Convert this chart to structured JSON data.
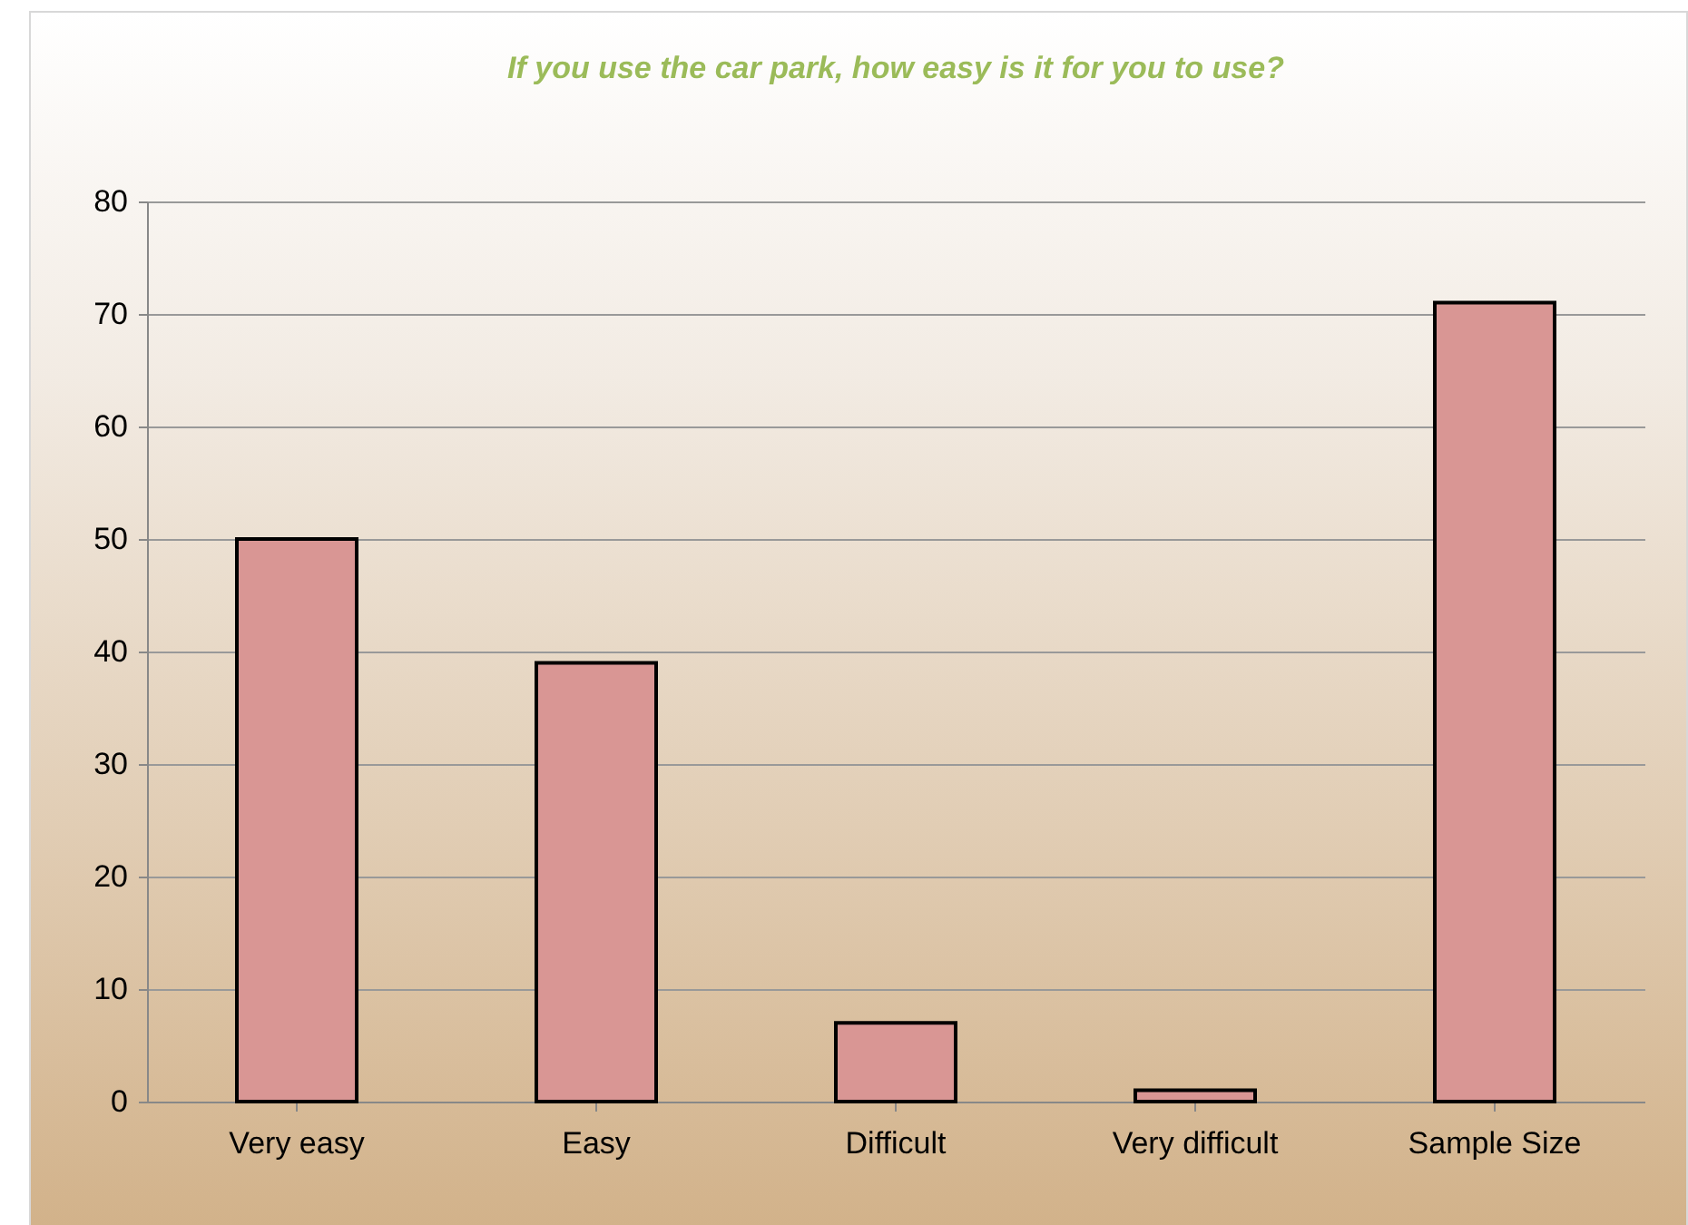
{
  "chart_data": {
    "type": "bar",
    "title": "If you use the car park, how easy is it for you to use?",
    "categories": [
      "Very easy",
      "Easy",
      "Difficult",
      "Very difficult",
      "Sample Size"
    ],
    "values": [
      50,
      39,
      7,
      1,
      71
    ],
    "color": "#d99694",
    "ylim": [
      0,
      80
    ],
    "yticks": [
      0,
      10,
      20,
      30,
      40,
      50,
      60,
      70,
      80
    ],
    "grid": "y"
  }
}
